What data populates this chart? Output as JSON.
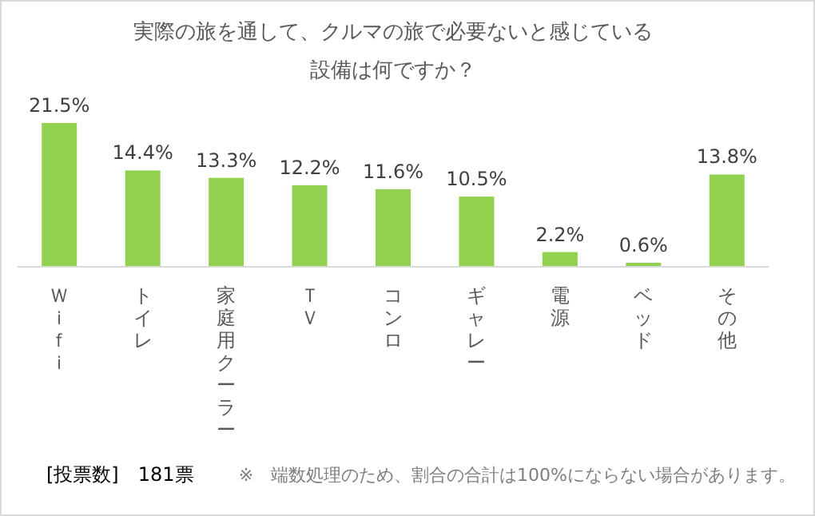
{
  "chart_data": {
    "type": "bar",
    "title": "実際の旅を通して、クルマの旅で必要ないと感じている設備は何ですか？",
    "categories": [
      "Ｗｉｆｉ",
      "トイレ",
      "家庭用クーラー",
      "ＴＶ",
      "コンロ",
      "ギャレー",
      "電源",
      "ベッド",
      "その他"
    ],
    "values": [
      21.5,
      14.4,
      13.3,
      12.2,
      11.6,
      10.5,
      2.2,
      0.6,
      13.8
    ],
    "value_labels": [
      "21.5%",
      "14.4%",
      "13.3%",
      "12.2%",
      "11.6%",
      "10.5%",
      "2.2%",
      "0.6%",
      "13.8%"
    ],
    "color": "#92d050",
    "annotations": [
      "[投票数]　181票",
      "※　端数処理のため、割合の合計は100%にならない場合があります。"
    ]
  }
}
